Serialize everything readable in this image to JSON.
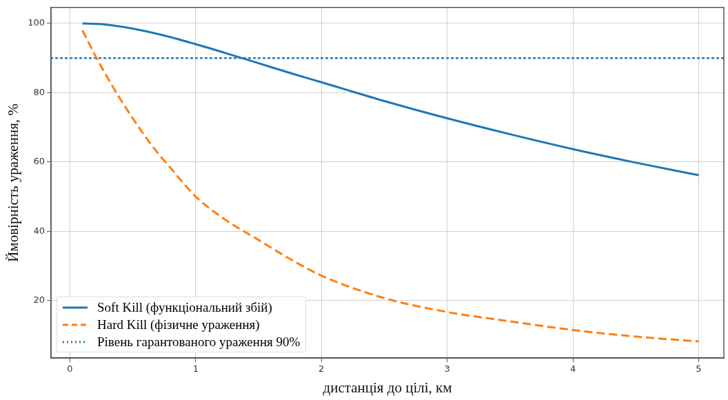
{
  "chart_data": {
    "type": "line",
    "xlabel": "дистанція до цілі, км",
    "ylabel": "Ймовірність ураження, %",
    "xlim": [
      -0.15,
      5.2
    ],
    "ylim": [
      3.4,
      104.6
    ],
    "xticks": [
      0,
      1,
      2,
      3,
      4,
      5
    ],
    "yticks": [
      20,
      40,
      60,
      80,
      100
    ],
    "grid": true,
    "legend": "bottom left",
    "marker": "none",
    "series": [
      {
        "name": "Soft Kill (функціональний збій)",
        "color": "#1f77b4",
        "line_style": "solid",
        "x": [
          0.1,
          0.25,
          0.5,
          0.75,
          1,
          1.25,
          1.5,
          1.75,
          2,
          2.5,
          3,
          3.5,
          4,
          4.5,
          5
        ],
        "values": [
          100,
          99.8,
          98.5,
          96.5,
          94,
          91.3,
          88.5,
          85.7,
          83,
          77.6,
          72.6,
          68,
          63.7,
          59.8,
          56.2
        ]
      },
      {
        "name": "Hard Kill (фізичне ураження)",
        "color": "#ff7f0e",
        "line_style": "dashed",
        "x": [
          0.1,
          0.2,
          0.3,
          0.4,
          0.5,
          0.6,
          0.7,
          0.8,
          0.9,
          1,
          1.25,
          1.5,
          1.75,
          2,
          2.5,
          3,
          3.5,
          4,
          4.5,
          5
        ],
        "values": [
          98,
          90.8,
          84.3,
          78.2,
          72.6,
          67.3,
          62.5,
          58.3,
          54,
          50,
          43,
          37.5,
          32,
          27.2,
          20.7,
          16.7,
          14,
          11.5,
          9.6,
          8.2
        ]
      }
    ],
    "ref_lines": [
      {
        "axis": "y",
        "value": 90,
        "label": "Рівень гарантованого ураження 90%",
        "color": "#1f77b4",
        "line_style": "dotted"
      }
    ]
  }
}
